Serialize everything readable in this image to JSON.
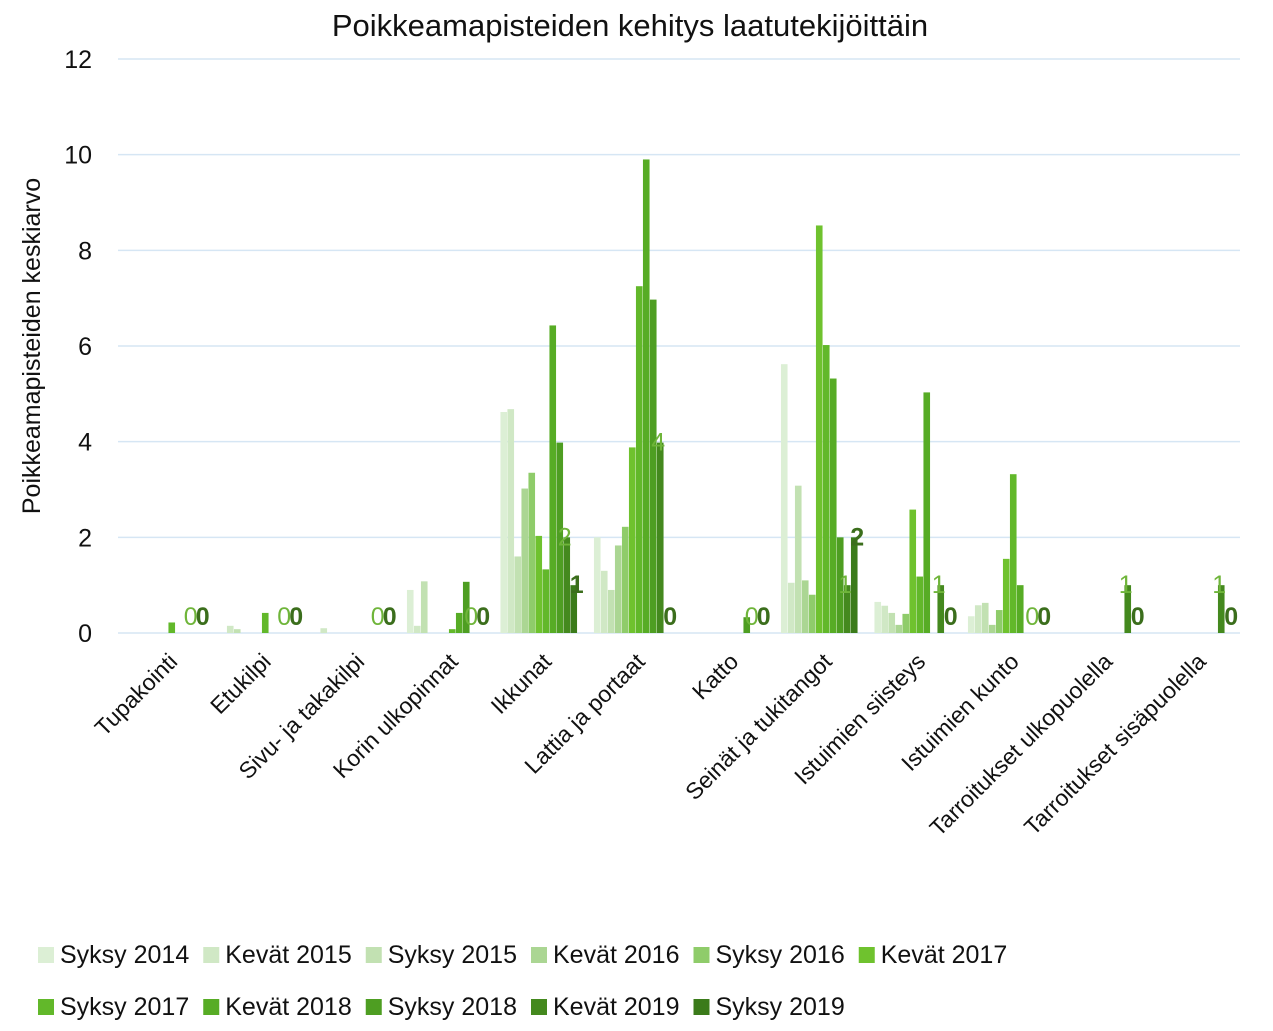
{
  "chart_data": {
    "type": "bar",
    "title": "Poikkeamapisteiden kehitys laatutekijöittäin",
    "y_label": "Poikkeamapisteiden keskiarvo",
    "categories": [
      "Tupakointi",
      "Etukilpi",
      "Sivu- ja takakilpi",
      "Korin ulkopinnat",
      "Ikkunat",
      "Lattia ja portaat",
      "Katto",
      "Seinät ja tukitangot",
      "Istuimien siisteys",
      "Istuimien kunto",
      "Tarroitukset ulkopuolella",
      "Tarroitukset sisäpuolella"
    ],
    "series": [
      {
        "name": "Syksy 2014",
        "color": "#dcefd5",
        "values": [
          0,
          0,
          0,
          0.9,
          4.62,
          2.0,
          0,
          5.62,
          0.65,
          0.35,
          0,
          0
        ]
      },
      {
        "name": "Kevät 2015",
        "color": "#d0e8c5",
        "values": [
          0,
          0.15,
          0.1,
          0.15,
          4.68,
          1.3,
          0,
          1.05,
          0.57,
          0.58,
          0,
          0
        ]
      },
      {
        "name": "Syksy 2015",
        "color": "#c2e1b2",
        "values": [
          0,
          0.08,
          0,
          1.08,
          1.6,
          0.9,
          0,
          3.08,
          0.42,
          0.63,
          0,
          0
        ]
      },
      {
        "name": "Kevät 2016",
        "color": "#abd693",
        "values": [
          0,
          0,
          0,
          0,
          3.02,
          1.83,
          0,
          1.1,
          0.17,
          0.17,
          0,
          0
        ]
      },
      {
        "name": "Syksy 2016",
        "color": "#8fcc6a",
        "values": [
          0,
          0,
          0,
          0,
          3.35,
          2.22,
          0,
          0.8,
          0.4,
          0.48,
          0,
          0
        ]
      },
      {
        "name": "Kevät 2017",
        "color": "#6fc22e",
        "values": [
          0,
          0,
          0,
          0,
          2.03,
          3.88,
          0,
          8.52,
          2.58,
          1.55,
          0,
          0
        ]
      },
      {
        "name": "Syksy 2017",
        "color": "#62b82a",
        "values": [
          0.22,
          0.42,
          0,
          0.08,
          1.33,
          7.25,
          0,
          6.02,
          1.18,
          3.32,
          0,
          0
        ]
      },
      {
        "name": "Kevät 2018",
        "color": "#57ac25",
        "values": [
          0,
          0,
          0,
          0.42,
          6.43,
          9.9,
          0,
          5.32,
          5.03,
          1.0,
          0,
          0
        ]
      },
      {
        "name": "Syksy 2018",
        "color": "#4e9e22",
        "values": [
          0,
          0,
          0,
          1.07,
          3.98,
          6.97,
          0.33,
          2.0,
          0,
          0,
          0,
          0
        ]
      },
      {
        "name": "Kevät 2019",
        "color": "#44891e",
        "values": [
          0,
          0,
          0,
          0,
          2.0,
          3.98,
          0,
          1.0,
          1.0,
          0,
          1.0,
          1.0
        ],
        "value_labels": [
          "0",
          "0",
          "0",
          "0",
          "2",
          "4",
          "0",
          "1",
          "1",
          "0",
          "1",
          "1"
        ],
        "label_color": "#6fb53a"
      },
      {
        "name": "Syksy 2019",
        "color": "#3b7b1a",
        "values": [
          0,
          0,
          0,
          0,
          1,
          0,
          0,
          2,
          0,
          0,
          0,
          0
        ],
        "label_color": "#3b6e1c"
      }
    ],
    "ylim": [
      0,
      12
    ],
    "yticks": [
      0,
      2,
      4,
      6,
      8,
      10,
      12
    ],
    "grid": true,
    "legend": "bottom"
  }
}
